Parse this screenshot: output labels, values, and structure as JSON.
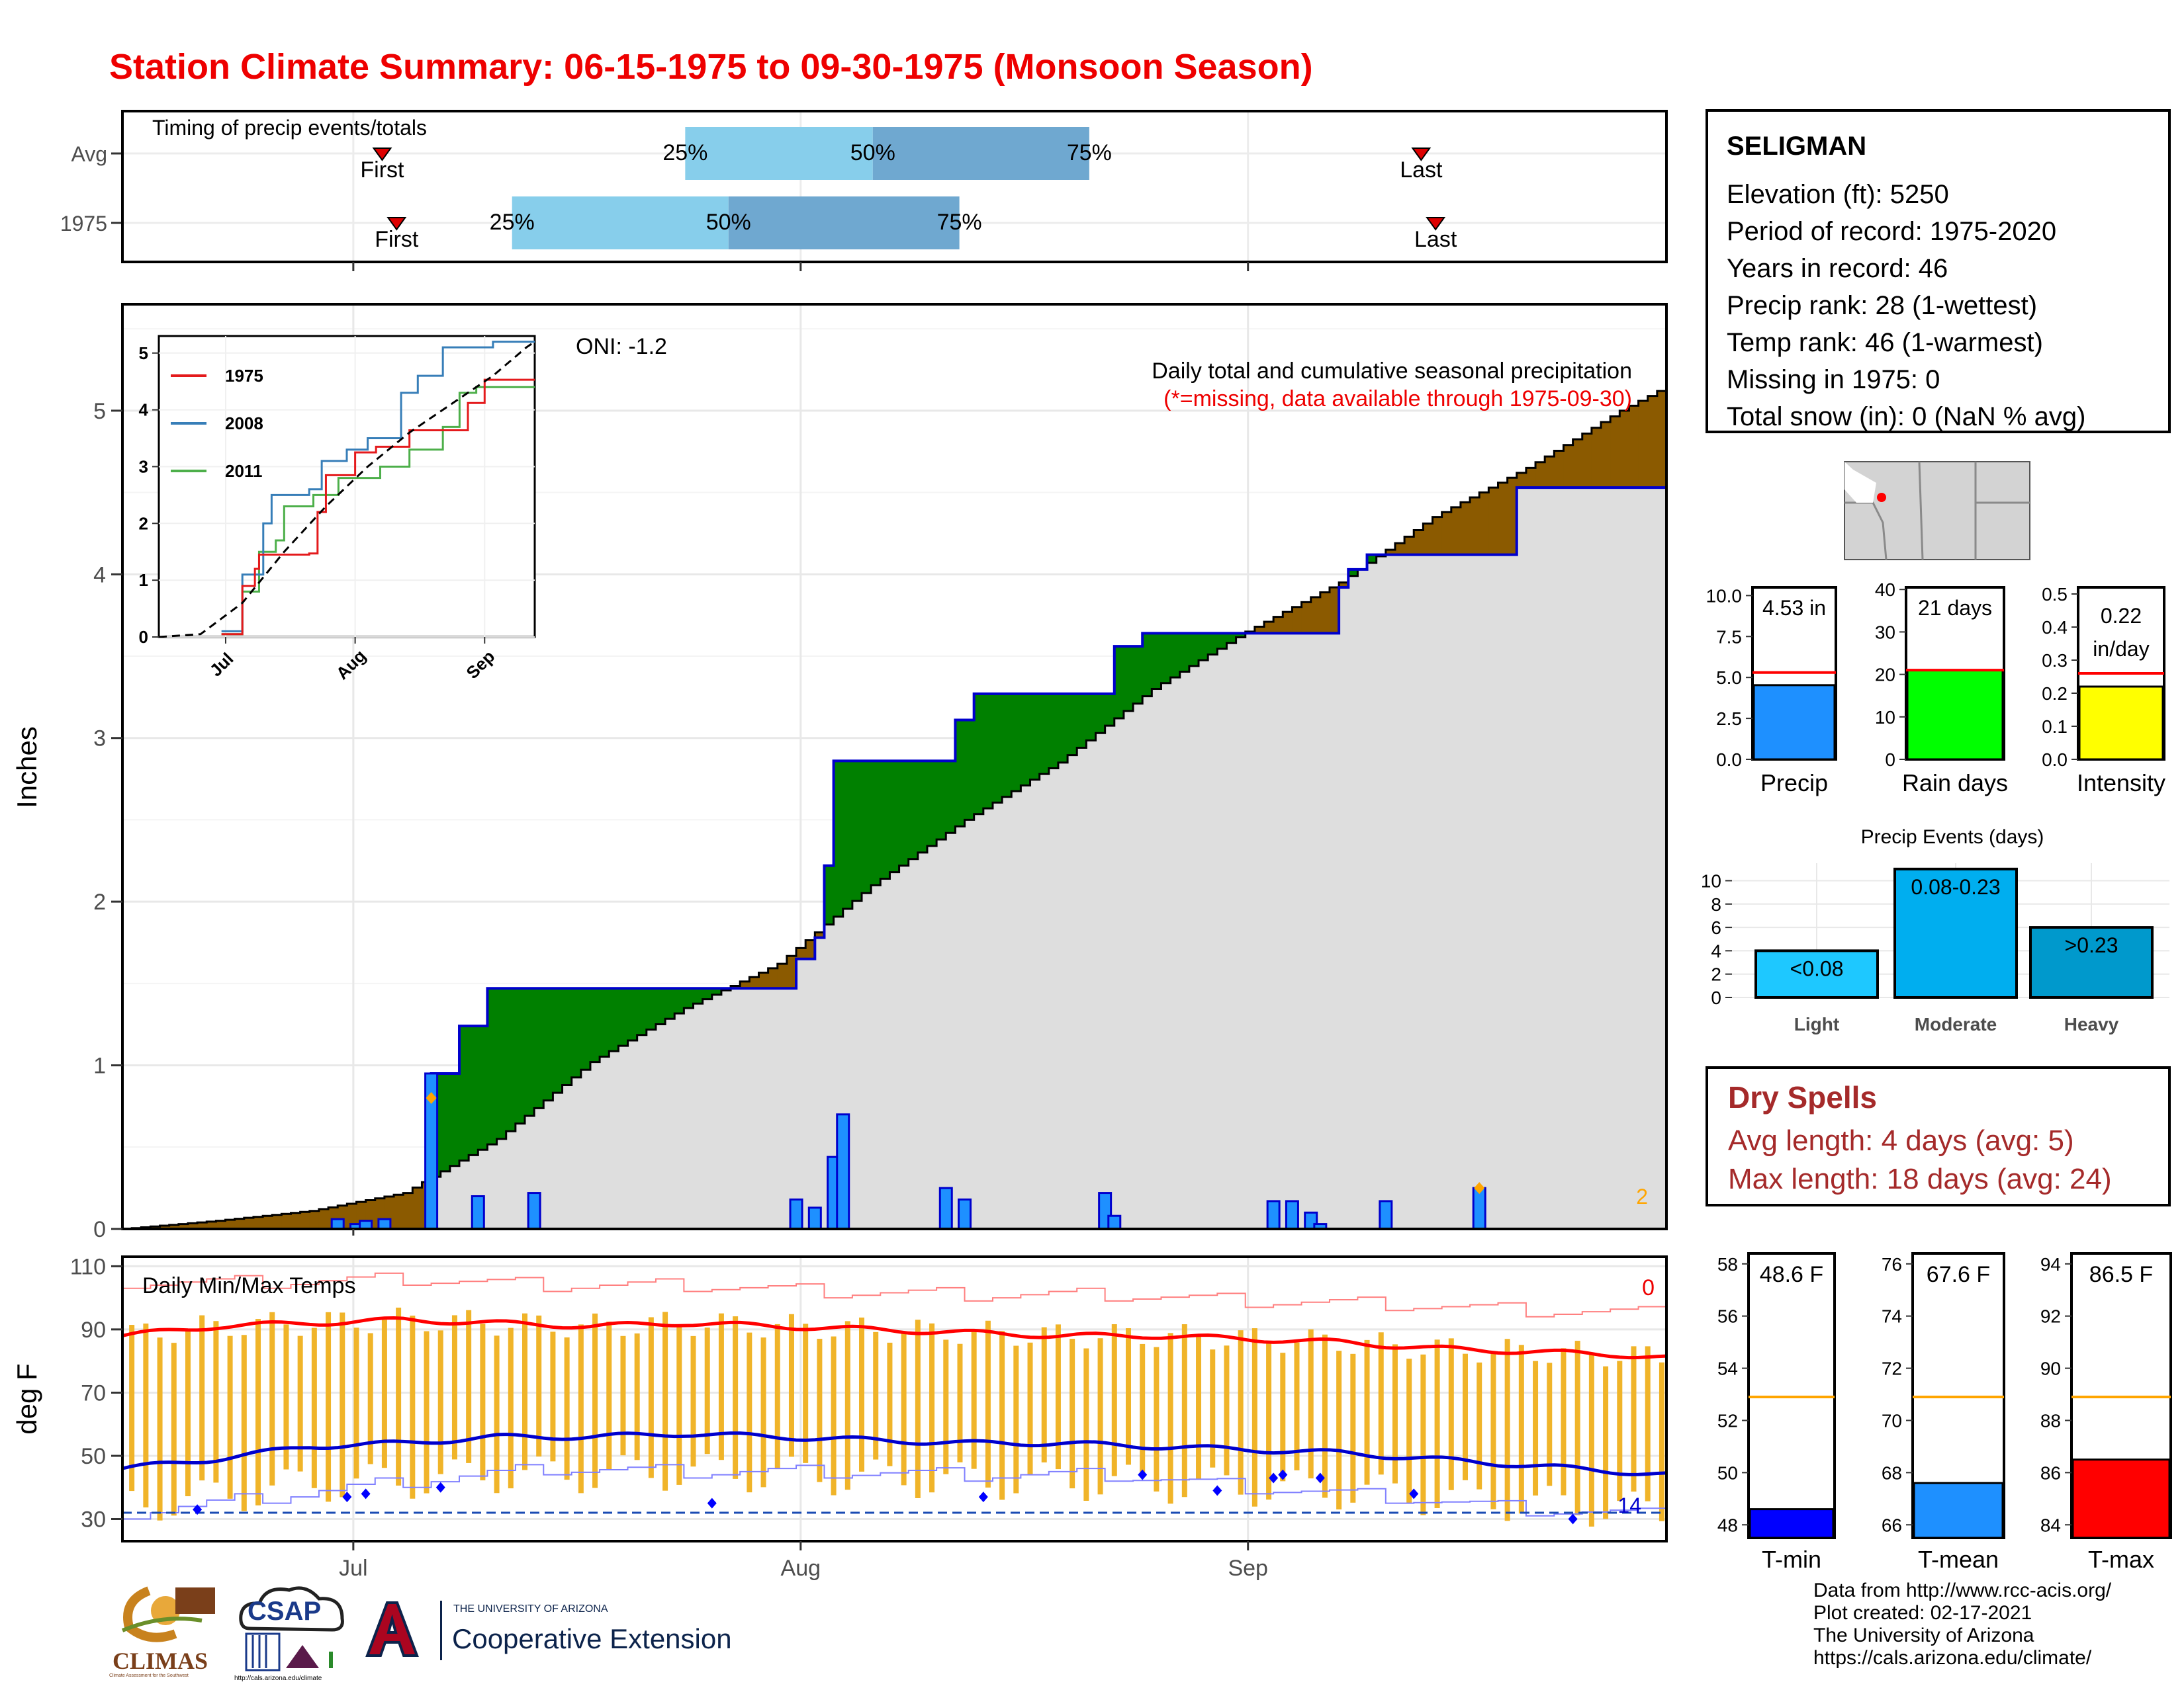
{
  "title": "Station Climate Summary: 06-15-1975 to 09-30-1975 (Monsoon Season)",
  "timing": {
    "label": "Timing of precip events/totals",
    "rows": [
      {
        "name": "Avg",
        "first_day": 18,
        "last_day": 90,
        "p25_day": 39,
        "p50_day": 52,
        "p75_day": 67
      },
      {
        "name": "1975",
        "first_day": 19,
        "last_day": 91,
        "p25_day": 27,
        "p50_day": 42,
        "p75_day": 58
      }
    ],
    "first_label": "First",
    "last_label": "Last",
    "pct_labels": [
      "25%",
      "50%",
      "75%"
    ]
  },
  "precip_panel": {
    "y_axis_label": "Inches",
    "oni_text": "ONI: -1.2",
    "note_line1": "Daily total and cumulative seasonal precipitation",
    "note_line2": "(*=missing, data available through 1975-09-30)",
    "missing_count": "2",
    "y_ticks": [
      "0",
      "1",
      "2",
      "3",
      "4",
      "5"
    ],
    "ylim": [
      0,
      5.65
    ]
  },
  "inset": {
    "series": [
      {
        "name": "1975",
        "color": "#e41a1c"
      },
      {
        "name": "2008",
        "color": "#377eb8"
      },
      {
        "name": "2011",
        "color": "#4daf4a"
      }
    ],
    "x_ticks": [
      "Jul",
      "Aug",
      "Sep"
    ],
    "y_ticks": [
      "0",
      "1",
      "2",
      "3",
      "4",
      "5"
    ]
  },
  "temp_panel": {
    "title": "Daily Min/Max Temps",
    "y_axis_label": "deg F",
    "y_ticks": [
      "30",
      "50",
      "70",
      "90",
      "110"
    ],
    "top_count": "0",
    "bottom_count": "14"
  },
  "x_axis": {
    "ticks": [
      "Jul",
      "Aug",
      "Sep"
    ]
  },
  "station": {
    "name": "SELIGMAN",
    "lines": [
      "Elevation (ft): 5250",
      "Period of record: 1975-2020",
      "Years in record: 46",
      "Precip rank: 28 (1-wettest)",
      "Temp rank: 46 (1-warmest)",
      "Missing in 1975: 0",
      "Total snow (in): 0 (NaN % avg)"
    ]
  },
  "summary_bars": [
    {
      "name": "Precip",
      "value_text": "4.53 in",
      "value": 4.53,
      "avg": 5.3,
      "ymax": 10.5,
      "ticks": [
        "0.0",
        "2.5",
        "5.0",
        "7.5",
        "10.0"
      ],
      "color": "#1e90ff"
    },
    {
      "name": "Rain days",
      "value_text": "21 days",
      "value": 21,
      "avg": 21,
      "ymax": 40.5,
      "ticks": [
        "0",
        "10",
        "20",
        "30",
        "40"
      ],
      "color": "#00ff00"
    },
    {
      "name": "Intensity",
      "value_text": "0.22 in/day",
      "value": 0.22,
      "avg": 0.26,
      "ymax": 0.52,
      "ticks": [
        "0.0",
        "0.1",
        "0.2",
        "0.3",
        "0.4",
        "0.5"
      ],
      "color": "#ffff00"
    }
  ],
  "precip_events": {
    "title": "Precip Events (days)",
    "y_ticks": [
      "0",
      "2",
      "4",
      "6",
      "8",
      "10"
    ],
    "categories": [
      "Light",
      "Moderate",
      "Heavy"
    ],
    "range_labels": [
      "<0.08",
      "0.08-0.23",
      ">0.23"
    ],
    "values": [
      4,
      11,
      6
    ],
    "colors": [
      "#1ec8ff",
      "#00aeef",
      "#0099cc"
    ]
  },
  "dry_spells": {
    "title": "Dry Spells",
    "avg_line": "Avg length: 4 days (avg: 5)",
    "max_line": "Max length: 18 days (avg: 24)"
  },
  "temp_bars": [
    {
      "name": "T-min",
      "value_text": "48.6 F",
      "value": 48.6,
      "avg": 52.9,
      "ymin": 47.5,
      "ymax": 58.4,
      "ticks": [
        "48",
        "50",
        "52",
        "54",
        "56",
        "58"
      ],
      "color": "#0000ff"
    },
    {
      "name": "T-mean",
      "value_text": "67.6 F",
      "value": 67.6,
      "avg": 70.9,
      "ymin": 65.5,
      "ymax": 76.4,
      "ticks": [
        "66",
        "68",
        "70",
        "72",
        "74",
        "76"
      ],
      "color": "#1e90ff"
    },
    {
      "name": "T-max",
      "value_text": "86.5 F",
      "value": 86.5,
      "avg": 88.9,
      "ymin": 83.5,
      "ymax": 94.4,
      "ticks": [
        "84",
        "86",
        "88",
        "90",
        "92",
        "94"
      ],
      "color": "#ff0000"
    }
  ],
  "credits": [
    "Data from http://www.rcc-acis.org/",
    "Plot created: 02-17-2021",
    "The University of Arizona",
    "https://cals.arizona.edu/climate/"
  ],
  "logos": {
    "climas": "CLIMAS",
    "climas_sub": "Climate Assessment for the Southwest",
    "csap": "CSAP",
    "csap_url": "http://cals.arizona.edu/climate",
    "ua_small": "THE UNIVERSITY OF ARIZONA",
    "ua_big": "Cooperative Extension"
  },
  "chart_data": {
    "type": "area",
    "x_start": "1975-06-15",
    "x_end": "1975-09-30",
    "daily_precip_1975": [
      [
        23,
        0.06
      ],
      [
        25,
        0.03
      ],
      [
        26,
        0.05
      ],
      [
        28,
        0.06
      ],
      [
        33,
        0.95
      ],
      [
        38,
        0.2
      ],
      [
        44,
        0.22
      ],
      [
        72,
        0.18
      ],
      [
        74,
        0.13
      ],
      [
        76,
        0.44
      ],
      [
        77,
        0.7
      ],
      [
        88,
        0.25
      ],
      [
        90,
        0.18
      ],
      [
        105,
        0.22
      ],
      [
        106,
        0.08
      ],
      [
        123,
        0.17
      ],
      [
        125,
        0.17
      ],
      [
        127,
        0.1
      ],
      [
        128,
        0.03
      ],
      [
        135,
        0.17
      ],
      [
        145,
        0.25
      ]
    ],
    "cumulative_1975": [
      [
        0,
        0
      ],
      [
        33,
        0.95
      ],
      [
        35,
        0.95
      ],
      [
        36,
        1.24
      ],
      [
        38,
        1.24
      ],
      [
        39,
        1.47
      ],
      [
        71,
        1.47
      ],
      [
        72,
        1.65
      ],
      [
        74,
        1.78
      ],
      [
        75,
        2.22
      ],
      [
        76,
        2.86
      ],
      [
        88,
        2.86
      ],
      [
        89,
        3.11
      ],
      [
        91,
        3.27
      ],
      [
        105,
        3.27
      ],
      [
        106,
        3.56
      ],
      [
        108,
        3.56
      ],
      [
        109,
        3.64
      ],
      [
        129,
        3.64
      ],
      [
        130,
        3.92
      ],
      [
        131,
        4.03
      ],
      [
        133,
        4.12
      ],
      [
        148,
        4.12
      ],
      [
        149,
        4.53
      ],
      [
        165,
        4.53
      ]
    ],
    "cumulative_avg": [
      [
        0,
        0
      ],
      [
        10,
        0.05
      ],
      [
        20,
        0.11
      ],
      [
        30,
        0.22
      ],
      [
        40,
        0.55
      ],
      [
        50,
        1.02
      ],
      [
        60,
        1.35
      ],
      [
        70,
        1.62
      ],
      [
        80,
        2.1
      ],
      [
        90,
        2.5
      ],
      [
        100,
        2.85
      ],
      [
        110,
        3.3
      ],
      [
        120,
        3.65
      ],
      [
        130,
        3.95
      ],
      [
        140,
        4.35
      ],
      [
        150,
        4.65
      ],
      [
        160,
        5.0
      ],
      [
        165,
        5.15
      ]
    ],
    "inset_1975": [
      [
        15,
        0.05
      ],
      [
        20,
        0.9
      ],
      [
        22,
        0.9
      ],
      [
        23,
        1.2
      ],
      [
        24,
        1.45
      ],
      [
        36,
        1.47
      ],
      [
        38,
        2.2
      ],
      [
        40,
        2.85
      ],
      [
        47,
        3.25
      ],
      [
        52,
        3.35
      ],
      [
        60,
        3.64
      ],
      [
        74,
        4.12
      ],
      [
        78,
        4.53
      ],
      [
        90,
        4.53
      ]
    ],
    "inset_2008": [
      [
        15,
        0.1
      ],
      [
        20,
        1.1
      ],
      [
        25,
        2.0
      ],
      [
        27,
        2.5
      ],
      [
        36,
        2.6
      ],
      [
        39,
        3.1
      ],
      [
        45,
        3.3
      ],
      [
        50,
        3.5
      ],
      [
        58,
        4.3
      ],
      [
        62,
        4.6
      ],
      [
        68,
        5.1
      ],
      [
        80,
        5.2
      ],
      [
        90,
        5.2
      ]
    ],
    "inset_2011": [
      [
        15,
        0.05
      ],
      [
        20,
        0.8
      ],
      [
        24,
        1.5
      ],
      [
        28,
        1.7
      ],
      [
        30,
        2.3
      ],
      [
        37,
        2.5
      ],
      [
        43,
        2.8
      ],
      [
        53,
        3.0
      ],
      [
        60,
        3.3
      ],
      [
        68,
        3.7
      ],
      [
        72,
        4.3
      ],
      [
        76,
        4.4
      ],
      [
        90,
        4.4
      ]
    ],
    "inset_avg": [
      [
        0,
        0
      ],
      [
        10,
        0.05
      ],
      [
        20,
        0.6
      ],
      [
        30,
        1.5
      ],
      [
        40,
        2.3
      ],
      [
        50,
        3.0
      ],
      [
        60,
        3.6
      ],
      [
        70,
        4.1
      ],
      [
        80,
        4.6
      ],
      [
        88,
        5.1
      ],
      [
        90,
        5.2
      ]
    ],
    "temp_avg_max": [
      [
        0,
        88
      ],
      [
        10,
        91
      ],
      [
        20,
        92
      ],
      [
        30,
        93
      ],
      [
        40,
        92
      ],
      [
        50,
        91
      ],
      [
        60,
        92
      ],
      [
        70,
        91
      ],
      [
        80,
        90
      ],
      [
        90,
        89
      ],
      [
        100,
        88
      ],
      [
        110,
        88
      ],
      [
        120,
        87
      ],
      [
        130,
        86
      ],
      [
        140,
        84
      ],
      [
        150,
        83
      ],
      [
        160,
        82
      ],
      [
        165,
        81
      ]
    ],
    "temp_avg_min": [
      [
        0,
        46
      ],
      [
        10,
        49
      ],
      [
        20,
        53
      ],
      [
        30,
        54
      ],
      [
        40,
        56
      ],
      [
        50,
        56
      ],
      [
        60,
        57
      ],
      [
        70,
        56
      ],
      [
        80,
        55
      ],
      [
        90,
        54
      ],
      [
        100,
        54
      ],
      [
        110,
        53
      ],
      [
        120,
        52
      ],
      [
        130,
        51
      ],
      [
        140,
        49
      ],
      [
        150,
        47
      ],
      [
        160,
        45
      ],
      [
        165,
        44
      ]
    ],
    "temp_extreme_max": [
      [
        0,
        105
      ],
      [
        15,
        105
      ],
      [
        30,
        106
      ],
      [
        45,
        104
      ],
      [
        60,
        104
      ],
      [
        75,
        102
      ],
      [
        90,
        101
      ],
      [
        105,
        101
      ],
      [
        120,
        99
      ],
      [
        135,
        98
      ],
      [
        150,
        96
      ],
      [
        165,
        95
      ]
    ],
    "temp_extreme_min": [
      [
        0,
        32
      ],
      [
        15,
        37
      ],
      [
        30,
        42
      ],
      [
        45,
        46
      ],
      [
        60,
        45
      ],
      [
        75,
        45
      ],
      [
        90,
        44
      ],
      [
        105,
        44
      ],
      [
        120,
        40
      ],
      [
        135,
        37
      ],
      [
        150,
        33
      ],
      [
        165,
        31
      ]
    ],
    "freezing_line": 32
  }
}
